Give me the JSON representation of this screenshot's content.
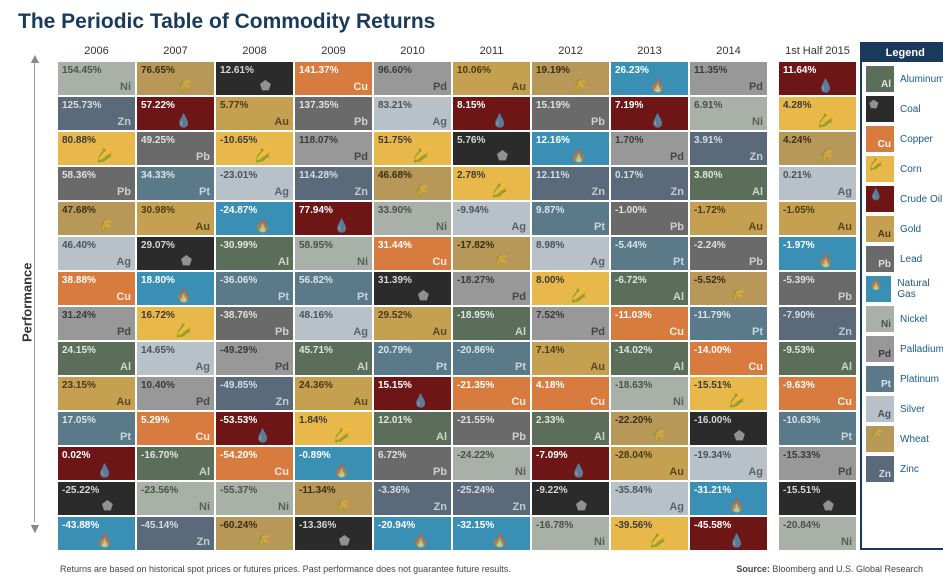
{
  "title": "The Periodic Table of Commodity Returns",
  "perf_label": "Performance",
  "footer_left": "Returns are based on historical spot prices or futures prices. Past performance does not guarantee future results.",
  "footer_right_label": "Source:",
  "footer_right": "Bloomberg and U.S. Global Research",
  "legend_title": "Legend",
  "commodities": {
    "Al": {
      "name": "Aluminum",
      "bg": "#5a6e5a",
      "fg": "#dfe6df",
      "icon": ""
    },
    "Coal": {
      "name": "Coal",
      "bg": "#2b2b2b",
      "fg": "#d6d6d6",
      "icon": "⬟",
      "sym": ""
    },
    "Cu": {
      "name": "Copper",
      "bg": "#d87b3e",
      "fg": "#ffffff",
      "icon": ""
    },
    "Corn": {
      "name": "Corn",
      "bg": "#e8b94a",
      "fg": "#3a3a3a",
      "icon": "🌽",
      "sym": ""
    },
    "Oil": {
      "name": "Crude Oil",
      "bg": "#6e1515",
      "fg": "#ffffff",
      "icon": "💧",
      "sym": ""
    },
    "Au": {
      "name": "Gold",
      "bg": "#c4a050",
      "fg": "#4a3a1a",
      "icon": ""
    },
    "Pb": {
      "name": "Lead",
      "bg": "#6a6a6a",
      "fg": "#e0e0e0",
      "icon": ""
    },
    "Gas": {
      "name": "Natural Gas",
      "bg": "#3a8fb5",
      "fg": "#ffffff",
      "icon": "🔥",
      "sym": ""
    },
    "Ni": {
      "name": "Nickel",
      "bg": "#a8b0a8",
      "fg": "#4a524a",
      "icon": ""
    },
    "Pd": {
      "name": "Palladium",
      "bg": "#989898",
      "fg": "#3a3a3a",
      "icon": ""
    },
    "Pt": {
      "name": "Platinum",
      "bg": "#5a7a8a",
      "fg": "#d8e4ea",
      "icon": ""
    },
    "Ag": {
      "name": "Silver",
      "bg": "#b8c0c8",
      "fg": "#4a525a",
      "icon": ""
    },
    "Wheat": {
      "name": "Wheat",
      "bg": "#b89858",
      "fg": "#3a2e18",
      "icon": "🌾",
      "sym": ""
    },
    "Zn": {
      "name": "Zinc",
      "bg": "#5a6a7a",
      "fg": "#d6dce2",
      "icon": ""
    }
  },
  "legend_order": [
    "Al",
    "Coal",
    "Cu",
    "Corn",
    "Oil",
    "Au",
    "Pb",
    "Gas",
    "Ni",
    "Pd",
    "Pt",
    "Ag",
    "Wheat",
    "Zn"
  ],
  "years": [
    "2006",
    "2007",
    "2008",
    "2009",
    "2010",
    "2011",
    "2012",
    "2013",
    "2014",
    "1st Half 2015"
  ],
  "columns": [
    [
      {
        "c": "Ni",
        "v": "154.45%"
      },
      {
        "c": "Zn",
        "v": "125.73%"
      },
      {
        "c": "Corn",
        "v": "80.88%"
      },
      {
        "c": "Pb",
        "v": "58.36%"
      },
      {
        "c": "Wheat",
        "v": "47.68%"
      },
      {
        "c": "Ag",
        "v": "46.40%"
      },
      {
        "c": "Cu",
        "v": "38.88%"
      },
      {
        "c": "Pd",
        "v": "31.24%"
      },
      {
        "c": "Al",
        "v": "24.15%"
      },
      {
        "c": "Au",
        "v": "23.15%"
      },
      {
        "c": "Pt",
        "v": "17.05%"
      },
      {
        "c": "Oil",
        "v": "0.02%"
      },
      {
        "c": "Coal",
        "v": "-25.22%"
      },
      {
        "c": "Gas",
        "v": "-43.88%"
      }
    ],
    [
      {
        "c": "Wheat",
        "v": "76.65%"
      },
      {
        "c": "Oil",
        "v": "57.22%"
      },
      {
        "c": "Pb",
        "v": "49.25%"
      },
      {
        "c": "Pt",
        "v": "34.33%"
      },
      {
        "c": "Au",
        "v": "30.98%"
      },
      {
        "c": "Coal",
        "v": "29.07%"
      },
      {
        "c": "Gas",
        "v": "18.80%"
      },
      {
        "c": "Corn",
        "v": "16.72%"
      },
      {
        "c": "Ag",
        "v": "14.65%"
      },
      {
        "c": "Pd",
        "v": "10.40%"
      },
      {
        "c": "Cu",
        "v": "5.29%"
      },
      {
        "c": "Al",
        "v": "-16.70%"
      },
      {
        "c": "Ni",
        "v": "-23.56%"
      },
      {
        "c": "Zn",
        "v": "-45.14%"
      }
    ],
    [
      {
        "c": "Coal",
        "v": "12.61%"
      },
      {
        "c": "Au",
        "v": "5.77%"
      },
      {
        "c": "Corn",
        "v": "-10.65%"
      },
      {
        "c": "Ag",
        "v": "-23.01%"
      },
      {
        "c": "Gas",
        "v": "-24.87%"
      },
      {
        "c": "Al",
        "v": "-30.99%"
      },
      {
        "c": "Pt",
        "v": "-36.06%"
      },
      {
        "c": "Pb",
        "v": "-38.76%"
      },
      {
        "c": "Pd",
        "v": "-49.29%"
      },
      {
        "c": "Zn",
        "v": "-49.85%"
      },
      {
        "c": "Oil",
        "v": "-53.53%"
      },
      {
        "c": "Cu",
        "v": "-54.20%"
      },
      {
        "c": "Ni",
        "v": "-55.37%"
      },
      {
        "c": "Wheat",
        "v": "-60.24%"
      }
    ],
    [
      {
        "c": "Cu",
        "v": "141.37%"
      },
      {
        "c": "Pb",
        "v": "137.35%"
      },
      {
        "c": "Pd",
        "v": "118.07%"
      },
      {
        "c": "Zn",
        "v": "114.28%"
      },
      {
        "c": "Oil",
        "v": "77.94%"
      },
      {
        "c": "Ni",
        "v": "58.95%"
      },
      {
        "c": "Pt",
        "v": "56.82%"
      },
      {
        "c": "Ag",
        "v": "48.16%"
      },
      {
        "c": "Al",
        "v": "45.71%"
      },
      {
        "c": "Au",
        "v": "24.36%"
      },
      {
        "c": "Corn",
        "v": "1.84%"
      },
      {
        "c": "Gas",
        "v": "-0.89%"
      },
      {
        "c": "Wheat",
        "v": "-11.34%"
      },
      {
        "c": "Coal",
        "v": "-13.36%"
      }
    ],
    [
      {
        "c": "Pd",
        "v": "96.60%"
      },
      {
        "c": "Ag",
        "v": "83.21%"
      },
      {
        "c": "Corn",
        "v": "51.75%"
      },
      {
        "c": "Wheat",
        "v": "46.68%"
      },
      {
        "c": "Ni",
        "v": "33.90%"
      },
      {
        "c": "Cu",
        "v": "31.44%"
      },
      {
        "c": "Coal",
        "v": "31.39%"
      },
      {
        "c": "Au",
        "v": "29.52%"
      },
      {
        "c": "Pt",
        "v": "20.79%"
      },
      {
        "c": "Oil",
        "v": "15.15%"
      },
      {
        "c": "Al",
        "v": "12.01%"
      },
      {
        "c": "Pb",
        "v": "6.72%"
      },
      {
        "c": "Zn",
        "v": "-3.36%"
      },
      {
        "c": "Gas",
        "v": "-20.94%"
      }
    ],
    [
      {
        "c": "Au",
        "v": "10.06%"
      },
      {
        "c": "Oil",
        "v": "8.15%"
      },
      {
        "c": "Coal",
        "v": "5.76%"
      },
      {
        "c": "Corn",
        "v": "2.78%"
      },
      {
        "c": "Ag",
        "v": "-9.94%"
      },
      {
        "c": "Wheat",
        "v": "-17.82%"
      },
      {
        "c": "Pd",
        "v": "-18.27%"
      },
      {
        "c": "Al",
        "v": "-18.95%"
      },
      {
        "c": "Pt",
        "v": "-20.86%"
      },
      {
        "c": "Cu",
        "v": "-21.35%"
      },
      {
        "c": "Pb",
        "v": "-21.55%"
      },
      {
        "c": "Ni",
        "v": "-24.22%"
      },
      {
        "c": "Zn",
        "v": "-25.24%"
      },
      {
        "c": "Gas",
        "v": "-32.15%"
      }
    ],
    [
      {
        "c": "Wheat",
        "v": "19.19%"
      },
      {
        "c": "Pb",
        "v": "15.19%"
      },
      {
        "c": "Gas",
        "v": "12.16%"
      },
      {
        "c": "Zn",
        "v": "12.11%"
      },
      {
        "c": "Pt",
        "v": "9.87%"
      },
      {
        "c": "Ag",
        "v": "8.98%"
      },
      {
        "c": "Corn",
        "v": "8.00%"
      },
      {
        "c": "Pd",
        "v": "7.52%"
      },
      {
        "c": "Au",
        "v": "7.14%"
      },
      {
        "c": "Cu",
        "v": "4.18%"
      },
      {
        "c": "Al",
        "v": "2.33%"
      },
      {
        "c": "Oil",
        "v": "-7.09%"
      },
      {
        "c": "Coal",
        "v": "-9.22%"
      },
      {
        "c": "Ni",
        "v": "-16.78%"
      }
    ],
    [
      {
        "c": "Gas",
        "v": "26.23%"
      },
      {
        "c": "Oil",
        "v": "7.19%"
      },
      {
        "c": "Pd",
        "v": "1.70%"
      },
      {
        "c": "Zn",
        "v": "0.17%"
      },
      {
        "c": "Pb",
        "v": "-1.00%"
      },
      {
        "c": "Pt",
        "v": "-5.44%"
      },
      {
        "c": "Al",
        "v": "-6.72%"
      },
      {
        "c": "Cu",
        "v": "-11.03%"
      },
      {
        "c": "Al",
        "v": "-14.02%"
      },
      {
        "c": "Ni",
        "v": "-18.63%"
      },
      {
        "c": "Wheat",
        "v": "-22.20%"
      },
      {
        "c": "Au",
        "v": "-28.04%"
      },
      {
        "c": "Ag",
        "v": "-35.84%"
      },
      {
        "c": "Corn",
        "v": "-39.56%"
      }
    ],
    [
      {
        "c": "Pd",
        "v": "11.35%"
      },
      {
        "c": "Ni",
        "v": "6.91%"
      },
      {
        "c": "Zn",
        "v": "3.91%"
      },
      {
        "c": "Al",
        "v": "3.80%"
      },
      {
        "c": "Au",
        "v": "-1.72%"
      },
      {
        "c": "Pb",
        "v": "-2.24%"
      },
      {
        "c": "Wheat",
        "v": "-5.52%"
      },
      {
        "c": "Pt",
        "v": "-11.79%"
      },
      {
        "c": "Cu",
        "v": "-14.00%"
      },
      {
        "c": "Corn",
        "v": "-15.51%"
      },
      {
        "c": "Coal",
        "v": "-16.00%"
      },
      {
        "c": "Ag",
        "v": "-19.34%"
      },
      {
        "c": "Gas",
        "v": "-31.21%"
      },
      {
        "c": "Oil",
        "v": "-45.58%"
      }
    ],
    [
      {
        "c": "Oil",
        "v": "11.64%"
      },
      {
        "c": "Corn",
        "v": "4.28%"
      },
      {
        "c": "Wheat",
        "v": "4.24%"
      },
      {
        "c": "Ag",
        "v": "0.21%"
      },
      {
        "c": "Au",
        "v": "-1.05%"
      },
      {
        "c": "Gas",
        "v": "-1.97%"
      },
      {
        "c": "Pb",
        "v": "-5.39%"
      },
      {
        "c": "Zn",
        "v": "-7.90%"
      },
      {
        "c": "Al",
        "v": "-9.53%"
      },
      {
        "c": "Cu",
        "v": "-9.63%"
      },
      {
        "c": "Pt",
        "v": "-10.63%"
      },
      {
        "c": "Pd",
        "v": "-15.33%"
      },
      {
        "c": "Coal",
        "v": "-15.51%"
      },
      {
        "c": "Ni",
        "v": "-20.84%"
      }
    ]
  ]
}
